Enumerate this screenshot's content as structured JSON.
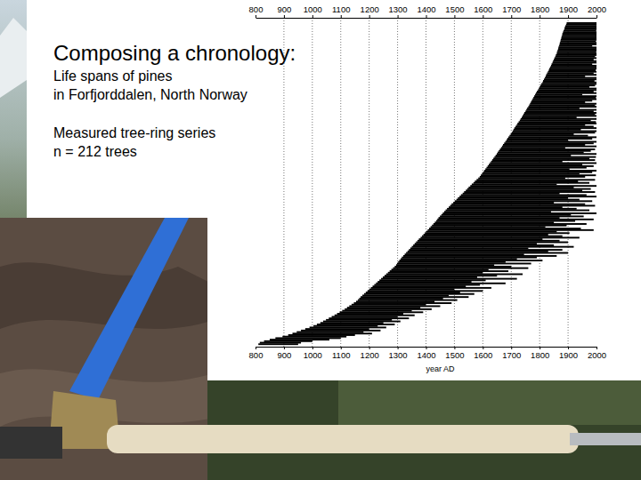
{
  "chart_data": {
    "type": "bar",
    "orientation": "horizontal",
    "title": "Composing a chronology:",
    "subtitle": [
      "Life spans of pines",
      "in Forfjorddalen, North Norway"
    ],
    "annotations": [
      "Measured tree-ring series",
      "n = 212 trees"
    ],
    "xlabel": "year AD",
    "color": "#000000",
    "grid": true,
    "tick_labels": "x",
    "xlim": [
      800,
      2000
    ],
    "xticks": [
      800,
      900,
      1000,
      1100,
      1200,
      1300,
      1400,
      1500,
      1600,
      1700,
      1800,
      1900,
      2000
    ],
    "starts": [
      1895,
      1893,
      1890,
      1888,
      1887,
      1884,
      1882,
      1880,
      1879,
      1877,
      1876,
      1874,
      1873,
      1871,
      1870,
      1868,
      1866,
      1865,
      1863,
      1861,
      1860,
      1857,
      1855,
      1852,
      1850,
      1847,
      1845,
      1842,
      1840,
      1837,
      1834,
      1832,
      1829,
      1826,
      1823,
      1821,
      1818,
      1815,
      1812,
      1810,
      1806,
      1803,
      1800,
      1797,
      1794,
      1790,
      1787,
      1784,
      1781,
      1778,
      1775,
      1772,
      1769,
      1766,
      1763,
      1760,
      1756,
      1753,
      1750,
      1746,
      1743,
      1740,
      1737,
      1733,
      1730,
      1726,
      1722,
      1719,
      1715,
      1711,
      1708,
      1705,
      1702,
      1698,
      1694,
      1690,
      1686,
      1683,
      1679,
      1675,
      1671,
      1668,
      1664,
      1660,
      1656,
      1652,
      1649,
      1645,
      1641,
      1637,
      1633,
      1629,
      1625,
      1621,
      1617,
      1613,
      1609,
      1605,
      1601,
      1597,
      1593,
      1589,
      1584,
      1578,
      1572,
      1567,
      1561,
      1556,
      1550,
      1545,
      1540,
      1534,
      1529,
      1523,
      1518,
      1512,
      1507,
      1501,
      1496,
      1490,
      1485,
      1480,
      1474,
      1469,
      1464,
      1459,
      1454,
      1449,
      1444,
      1440,
      1436,
      1431,
      1426,
      1421,
      1416,
      1411,
      1406,
      1401,
      1396,
      1391,
      1386,
      1381,
      1375,
      1370,
      1365,
      1360,
      1355,
      1350,
      1345,
      1340,
      1335,
      1330,
      1325,
      1320,
      1315,
      1311,
      1306,
      1302,
      1298,
      1295,
      1290,
      1284,
      1278,
      1272,
      1266,
      1260,
      1254,
      1248,
      1242,
      1236,
      1230,
      1224,
      1218,
      1212,
      1206,
      1200,
      1194,
      1188,
      1182,
      1176,
      1170,
      1165,
      1160,
      1154,
      1146,
      1138,
      1130,
      1122,
      1114,
      1105,
      1096,
      1087,
      1078,
      1068,
      1058,
      1048,
      1038,
      1028,
      1016,
      1004,
      990,
      975,
      960,
      945,
      930,
      915,
      895,
      870,
      850,
      830,
      815,
      810
    ],
    "ends": [
      2000,
      2000,
      2000,
      2000,
      2000,
      1999,
      2000,
      2000,
      2000,
      2000,
      2000,
      2000,
      1998,
      2000,
      2000,
      1985,
      2000,
      2000,
      2000,
      1999,
      2000,
      2000,
      1995,
      2000,
      1990,
      2000,
      2000,
      1985,
      2000,
      2000,
      2000,
      1997,
      2000,
      1990,
      2000,
      1960,
      2000,
      2000,
      1993,
      2000,
      2000,
      1995,
      1975,
      2000,
      2000,
      1990,
      2000,
      1950,
      2000,
      1998,
      2000,
      1985,
      1960,
      2000,
      1995,
      2000,
      1940,
      2000,
      1990,
      2000,
      1995,
      2000,
      1930,
      2000,
      1980,
      1998,
      2000,
      1960,
      1990,
      2000,
      1945,
      2000,
      1995,
      1920,
      1970,
      2000,
      1985,
      1900,
      2000,
      1990,
      1960,
      2000,
      1890,
      1995,
      1980,
      1955,
      2000,
      1910,
      1998,
      1975,
      1995,
      1880,
      2000,
      1950,
      1990,
      1965,
      1905,
      2000,
      1985,
      1940,
      1998,
      1960,
      1890,
      1995,
      1935,
      1975,
      1860,
      2000,
      1920,
      1980,
      1950,
      1995,
      1870,
      1965,
      2000,
      1900,
      1940,
      1985,
      1850,
      1960,
      1995,
      1880,
      1930,
      1975,
      1840,
      2000,
      1910,
      1955,
      1870,
      1990,
      1925,
      1850,
      1965,
      1895,
      1820,
      1945,
      1990,
      1860,
      1905,
      1830,
      1880,
      1940,
      1810,
      1870,
      1900,
      1790,
      1850,
      1920,
      1760,
      1880,
      1830,
      1900,
      1745,
      1860,
      1790,
      1720,
      1810,
      1680,
      1770,
      1640,
      1700,
      1760,
      1620,
      1690,
      1600,
      1740,
      1650,
      1580,
      1720,
      1610,
      1560,
      1680,
      1590,
      1540,
      1630,
      1500,
      1600,
      1520,
      1570,
      1480,
      1550,
      1460,
      1510,
      1430,
      1490,
      1400,
      1450,
      1380,
      1420,
      1350,
      1390,
      1320,
      1360,
      1300,
      1340,
      1280,
      1310,
      1250,
      1290,
      1230,
      1260,
      1200,
      1240,
      1180,
      1210,
      1150,
      1120,
      1100,
      1060,
      1000,
      960,
      950
    ]
  }
}
